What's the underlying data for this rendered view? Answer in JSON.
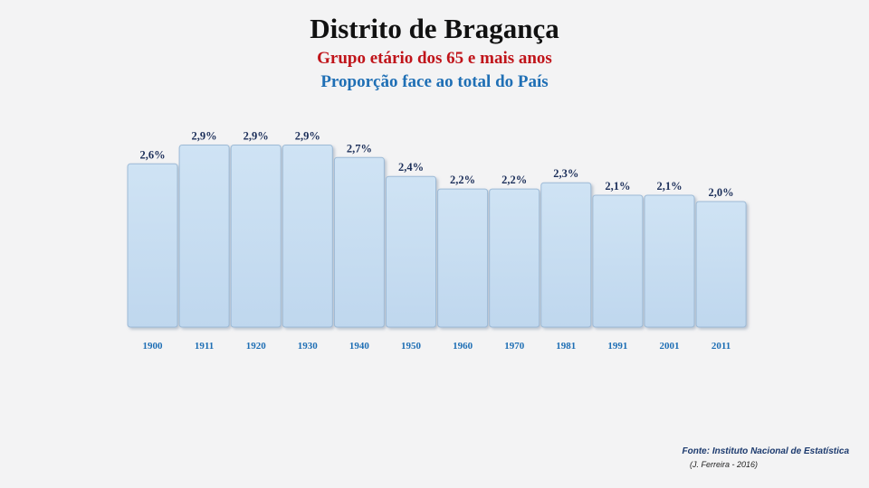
{
  "header": {
    "title": "Distrito de Bragança",
    "subtitle1": "Grupo etário dos 65 e mais anos",
    "subtitle2": "Proporção face ao total do País"
  },
  "footer": {
    "source": "Fonte: Instituto Nacional de Estatística",
    "author": "(J. Ferreira - 2016)"
  },
  "chart_data": {
    "type": "bar",
    "title": "Distrito de Bragança",
    "subtitle": [
      "Grupo etário dos 65 e mais anos",
      "Proporção face ao total do País"
    ],
    "categories": [
      "1900",
      "1911",
      "1920",
      "1930",
      "1940",
      "1950",
      "1960",
      "1970",
      "1981",
      "1991",
      "2001",
      "2011"
    ],
    "values": [
      2.6,
      2.9,
      2.9,
      2.9,
      2.7,
      2.4,
      2.2,
      2.2,
      2.3,
      2.1,
      2.1,
      2.0
    ],
    "labels": [
      "2,6%",
      "2,9%",
      "2,9%",
      "2,9%",
      "2,7%",
      "2,4%",
      "2,2%",
      "2,2%",
      "2,3%",
      "2,1%",
      "2,1%",
      "2,0%"
    ],
    "xlabel": "",
    "ylabel": "",
    "grid": false,
    "legend": "none",
    "colors": {
      "bar_fill": "#c5dcf0",
      "bar_stroke": "#9dbad6",
      "label": "#1c2f5a",
      "tick": "#1f6fb5"
    }
  }
}
